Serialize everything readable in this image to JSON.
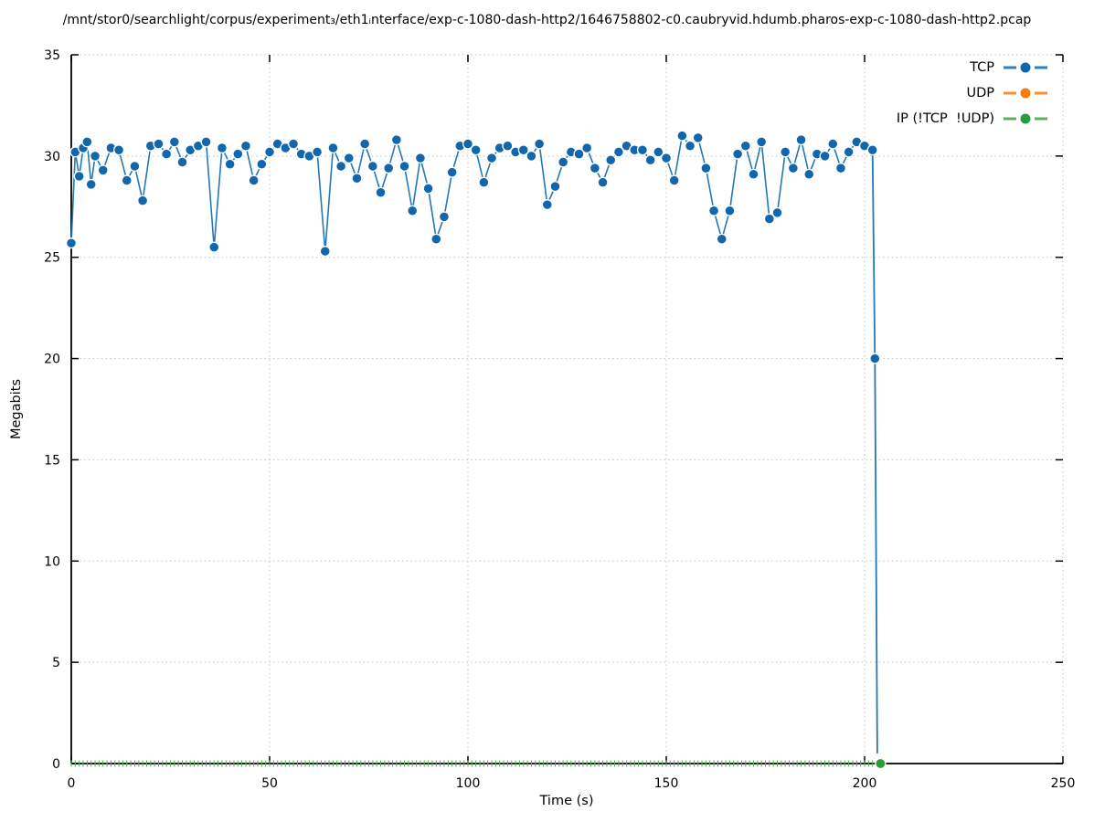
{
  "chart": {
    "title": "/mnt/stor0/searchlight/corpus/experiment₃/eth1ᵢnterface/exp-c-1080-dash-http2/1646758802-c0.caubryvid.hdumb.pharos-exp-c-1080-dash-http2.pcap",
    "xlabel": "Time (s)",
    "ylabel": "Megabits"
  },
  "legend": {
    "position": "top-right-inside",
    "items": [
      {
        "label": "TCP",
        "line_color": "#2e7fbd",
        "point_color": "#1166ac"
      },
      {
        "label": "UDP",
        "line_color": "#ff9029",
        "point_color": "#f97c09"
      },
      {
        "label": "IP (!TCP  !UDP)",
        "line_color": "#5fae5f",
        "point_color": "#2a9d3a"
      }
    ]
  },
  "chart_data": {
    "type": "line",
    "title": "/mnt/stor0/searchlight/corpus/experiment₃/eth1ᵢnterface/exp-c-1080-dash-http2/1646758802-c0.caubryvid.hdumb.pharos-exp-c-1080-dash-http2.pcap",
    "xlabel": "Time (s)",
    "ylabel": "Megabits",
    "xlim": [
      0,
      250
    ],
    "ylim": [
      0,
      35
    ],
    "x_ticks": [
      0,
      50,
      100,
      150,
      200,
      250
    ],
    "y_ticks": [
      0,
      5,
      10,
      15,
      20,
      25,
      30,
      35
    ],
    "grid": "dotted",
    "grid_color": "#c4c4c4",
    "legend_position": "top-right-inside",
    "series": [
      {
        "name": "TCP",
        "style": "linespoints",
        "line_color": "#2478b5",
        "point_color": "#1166ac",
        "points": [
          [
            0,
            25.7
          ],
          [
            1,
            30.2
          ],
          [
            2,
            29.0
          ],
          [
            3,
            30.4
          ],
          [
            4,
            30.7
          ],
          [
            5,
            28.6
          ],
          [
            6,
            30.0
          ],
          [
            8,
            29.3
          ],
          [
            10,
            30.4
          ],
          [
            12,
            30.3
          ],
          [
            14,
            28.8
          ],
          [
            16,
            29.5
          ],
          [
            18,
            27.8
          ],
          [
            20,
            30.5
          ],
          [
            22,
            30.6
          ],
          [
            24,
            30.1
          ],
          [
            26,
            30.7
          ],
          [
            28,
            29.7
          ],
          [
            30,
            30.3
          ],
          [
            32,
            30.5
          ],
          [
            34,
            30.7
          ],
          [
            36,
            25.5
          ],
          [
            38,
            30.4
          ],
          [
            40,
            29.6
          ],
          [
            42,
            30.1
          ],
          [
            44,
            30.5
          ],
          [
            46,
            28.8
          ],
          [
            48,
            29.6
          ],
          [
            50,
            30.2
          ],
          [
            52,
            30.6
          ],
          [
            54,
            30.4
          ],
          [
            56,
            30.6
          ],
          [
            58,
            30.1
          ],
          [
            60,
            30.0
          ],
          [
            62,
            30.2
          ],
          [
            64,
            25.3
          ],
          [
            66,
            30.4
          ],
          [
            68,
            29.5
          ],
          [
            70,
            29.9
          ],
          [
            72,
            28.9
          ],
          [
            74,
            30.6
          ],
          [
            76,
            29.5
          ],
          [
            78,
            28.2
          ],
          [
            80,
            29.4
          ],
          [
            82,
            30.8
          ],
          [
            84,
            29.5
          ],
          [
            86,
            27.3
          ],
          [
            88,
            29.9
          ],
          [
            90,
            28.4
          ],
          [
            92,
            25.9
          ],
          [
            94,
            27.0
          ],
          [
            96,
            29.2
          ],
          [
            98,
            30.5
          ],
          [
            100,
            30.6
          ],
          [
            102,
            30.3
          ],
          [
            104,
            28.7
          ],
          [
            106,
            29.9
          ],
          [
            108,
            30.4
          ],
          [
            110,
            30.5
          ],
          [
            112,
            30.2
          ],
          [
            114,
            30.3
          ],
          [
            116,
            30.0
          ],
          [
            118,
            30.6
          ],
          [
            120,
            27.6
          ],
          [
            122,
            28.5
          ],
          [
            124,
            29.7
          ],
          [
            126,
            30.2
          ],
          [
            128,
            30.1
          ],
          [
            130,
            30.4
          ],
          [
            132,
            29.4
          ],
          [
            134,
            28.7
          ],
          [
            136,
            29.8
          ],
          [
            138,
            30.2
          ],
          [
            140,
            30.5
          ],
          [
            142,
            30.3
          ],
          [
            144,
            30.3
          ],
          [
            146,
            29.8
          ],
          [
            148,
            30.2
          ],
          [
            150,
            29.9
          ],
          [
            152,
            28.8
          ],
          [
            154,
            31.0
          ],
          [
            156,
            30.5
          ],
          [
            158,
            30.9
          ],
          [
            160,
            29.4
          ],
          [
            162,
            27.3
          ],
          [
            164,
            25.9
          ],
          [
            166,
            27.3
          ],
          [
            168,
            30.1
          ],
          [
            170,
            30.5
          ],
          [
            172,
            29.1
          ],
          [
            174,
            30.7
          ],
          [
            176,
            26.9
          ],
          [
            178,
            27.2
          ],
          [
            180,
            30.2
          ],
          [
            182,
            29.4
          ],
          [
            184,
            30.8
          ],
          [
            186,
            29.1
          ],
          [
            188,
            30.1
          ],
          [
            190,
            30.0
          ],
          [
            192,
            30.6
          ],
          [
            194,
            29.4
          ],
          [
            196,
            30.2
          ],
          [
            198,
            30.7
          ],
          [
            200,
            30.5
          ],
          [
            202,
            30.3
          ]
        ],
        "extra_line": [
          [
            202,
            30.3
          ],
          [
            202.6,
            20.0
          ],
          [
            203.2,
            0.5
          ]
        ],
        "extra_dots": [
          [
            202.6,
            20.0
          ]
        ]
      },
      {
        "name": "UDP",
        "style": "linespoints",
        "line_color": "#ff9029",
        "point_color": "#f97c09",
        "points": []
      },
      {
        "name": "IP (!TCP  !UDP)",
        "style": "linespoints",
        "line_color": "#5fae5f",
        "point_color": "#2a9d3a",
        "y_constant": 0,
        "x_range": [
          0,
          204
        ],
        "tick_marker_step": 1,
        "end_dot": [
          204,
          0
        ]
      }
    ]
  }
}
